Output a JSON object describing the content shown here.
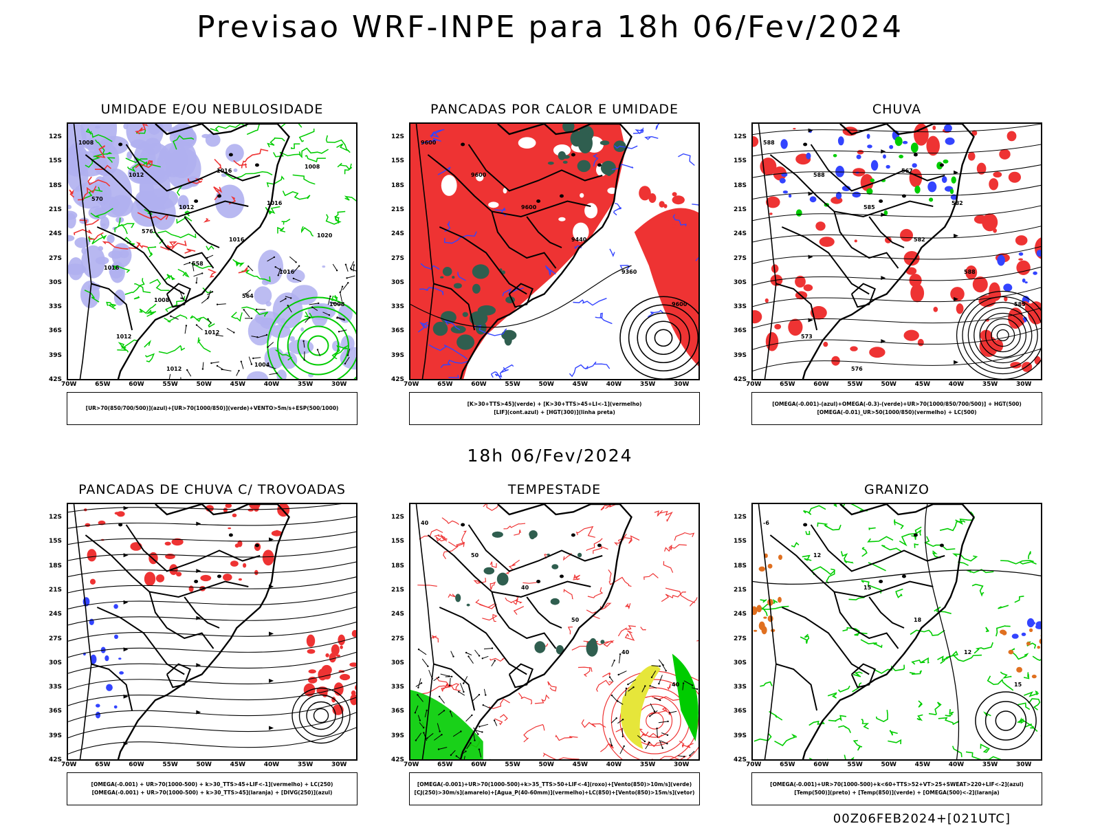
{
  "title": "Previsao WRF-INPE  para 18h 06/Fev/2024",
  "subtitle": "18h 06/Fev/2024",
  "footer": "00Z06FEB2024+[021UTC]",
  "colors": {
    "red": "#ee3333",
    "green": "#00cc00",
    "blue": "#3344ff",
    "lavender": "#b0b0f0",
    "darkgreen": "#2f5e4f",
    "yellow": "#e6e63a",
    "orange": "#e07020"
  },
  "chart_data": [
    {
      "type": "heatmap",
      "title": "UMIDADE E/OU NEBULOSIDADE",
      "legend": [
        "[UR>70(850/700/500)](azul)+[UR>70(1000/850)](verde)+VENTO>5m/s+ESP(500/1000)"
      ],
      "ylim": [
        -42,
        -10
      ],
      "xlim": [
        -70,
        -28
      ],
      "y_ticks": [
        "12S",
        "15S",
        "18S",
        "21S",
        "24S",
        "27S",
        "30S",
        "33S",
        "36S",
        "39S",
        "42S"
      ],
      "x_ticks": [
        "70W",
        "65W",
        "60W",
        "55W",
        "50W",
        "45W",
        "40W",
        "35W",
        "30W"
      ],
      "contour_labels": [
        "1008",
        "1012",
        "1012",
        "1016",
        "1016",
        "1008",
        "1012",
        "1012",
        "1016",
        "1016",
        "1020",
        "1016",
        "1008",
        "1012",
        "1004",
        "1008",
        "570",
        "576",
        "558",
        "564"
      ]
    },
    {
      "type": "heatmap",
      "title": "PANCADAS POR CALOR E UMIDADE",
      "legend": [
        "[K>30+TTS>45](verde) + [K>30+TTS>45+LI<-1](vermelho)",
        "[LIF](cont.azul) + [HGT(300)](linha preta)"
      ],
      "ylim": [
        -42,
        -10
      ],
      "xlim": [
        -70,
        -28
      ],
      "y_ticks": [
        "12S",
        "15S",
        "18S",
        "21S",
        "24S",
        "27S",
        "30S",
        "33S",
        "36S",
        "39S",
        "42S"
      ],
      "x_ticks": [
        "70W",
        "65W",
        "60W",
        "55W",
        "50W",
        "45W",
        "40W",
        "35W",
        "30W"
      ],
      "contour_labels": [
        "9600",
        "9600",
        "9600",
        "9440",
        "9360",
        "9600"
      ]
    },
    {
      "type": "heatmap",
      "title": "CHUVA",
      "legend": [
        "[OMEGA(-0.001)-(azul)+OMEGA(-0.3)-(verde)+UR>70(1000/850/700/500)] + HGT(500)",
        "[OMEGA(-0.01)_UR>50(1000/850)(vermelho) + LC(500)"
      ],
      "ylim": [
        -42,
        -10
      ],
      "xlim": [
        -70,
        -28
      ],
      "y_ticks": [
        "12S",
        "15S",
        "18S",
        "21S",
        "24S",
        "27S",
        "30S",
        "33S",
        "36S",
        "39S",
        "42S"
      ],
      "x_ticks": [
        "70W",
        "65W",
        "60W",
        "55W",
        "50W",
        "45W",
        "40W",
        "35W",
        "30W"
      ],
      "contour_labels": [
        "588",
        "588",
        "585",
        "582",
        "588",
        "585",
        "573",
        "576",
        "567",
        "582"
      ]
    },
    {
      "type": "heatmap",
      "title": "PANCADAS DE CHUVA C/ TROVOADAS",
      "legend": [
        "[OMEGA(-0.001) + UR>70(1000-500) + k>30_TTS>45+LIF<-1](vermelho) + LC(250)",
        "[OMEGA(-0.001) + UR>70(1000-500) + k>30_TTS>45](laranja) + [DIVG(250)](azul)"
      ],
      "ylim": [
        -42,
        -10
      ],
      "xlim": [
        -70,
        -28
      ],
      "y_ticks": [
        "12S",
        "15S",
        "18S",
        "21S",
        "24S",
        "27S",
        "30S",
        "33S",
        "36S",
        "39S",
        "42S"
      ],
      "x_ticks": [
        "70W",
        "65W",
        "60W",
        "55W",
        "50W",
        "45W",
        "40W",
        "35W",
        "30W"
      ]
    },
    {
      "type": "heatmap",
      "title": "TEMPESTADE",
      "legend": [
        "[OMEGA(-0.001)+UR>70(1000-500)+k>35_TTS>50+LIF<-4](roxo)+[Vento(850)>10m/s](verde)",
        "[CJ(250)>30m/s](amarelo)+[Agua_P(40-60mm)](vermelho)+LC(850)+[Vento(850)>15m/s](vetor)"
      ],
      "ylim": [
        -42,
        -10
      ],
      "xlim": [
        -70,
        -28
      ],
      "y_ticks": [
        "12S",
        "15S",
        "18S",
        "21S",
        "24S",
        "27S",
        "30S",
        "33S",
        "36S",
        "39S",
        "42S"
      ],
      "x_ticks": [
        "70W",
        "65W",
        "60W",
        "55W",
        "50W",
        "45W",
        "40W",
        "35W",
        "30W"
      ],
      "contour_labels": [
        "40",
        "50",
        "40",
        "50",
        "40",
        "40"
      ]
    },
    {
      "type": "heatmap",
      "title": "GRANIZO",
      "legend": [
        "[OMEGA(-0.001)+UR>70(1000-500)+k<60+TTS>52+VT>25+SWEAT>220+LIF<-2](azul)",
        "[Temp(500)](preto) + [Temp(850)](verde) + [OMEGA(500)<-2](laranja)"
      ],
      "ylim": [
        -42,
        -10
      ],
      "xlim": [
        -70,
        -28
      ],
      "y_ticks": [
        "12S",
        "15S",
        "18S",
        "21S",
        "24S",
        "27S",
        "30S",
        "33S",
        "36S",
        "39S",
        "42S"
      ],
      "x_ticks": [
        "70W",
        "65W",
        "60W",
        "55W",
        "50W",
        "45W",
        "40W",
        "35W",
        "30W"
      ],
      "contour_labels": [
        "-6",
        "12",
        "15",
        "18",
        "12",
        "15"
      ]
    }
  ]
}
